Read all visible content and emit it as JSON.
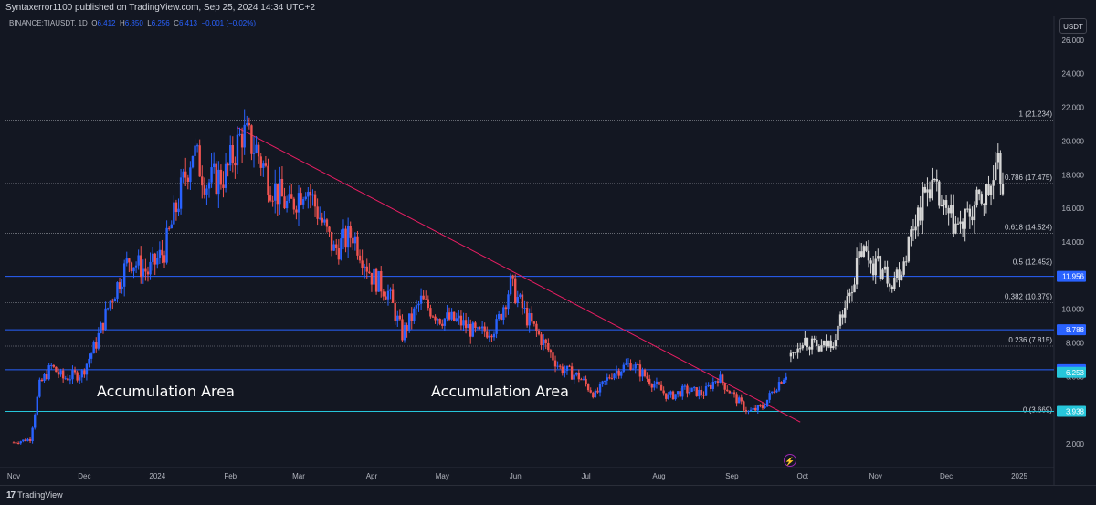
{
  "header": {
    "published": "Syntaxerror1100 published on TradingView.com, Sep 25, 2024 14:34 UTC+2",
    "symbol": "BINANCE:TIAUSDT, 1D",
    "o_label": "O",
    "o": "6.412",
    "h_label": "H",
    "h": "6.850",
    "l_label": "L",
    "l": "6.256",
    "c_label": "C",
    "c": "6.413",
    "change": "−0.001 (−0.02%)"
  },
  "currency": "USDT",
  "footer": {
    "brand": "TradingView",
    "logo_mark": "17"
  },
  "annotations": {
    "accumulation_1": "Accumulation Area",
    "accumulation_2": "Accumulation Area"
  },
  "colors": {
    "up": "#2962ff",
    "down": "#ef5350",
    "projection": "#d6d6d6",
    "trendline": "#e91e63",
    "hline": "#2962ff",
    "teal_line": "#26c6da",
    "fib": "#9598a1"
  },
  "chart_data": {
    "type": "candlestick",
    "title": "",
    "x_axis_ticks": [
      "Nov",
      "Dec",
      "2024",
      "Feb",
      "Mar",
      "Apr",
      "May",
      "Jun",
      "Jul",
      "Aug",
      "Sep",
      "Oct",
      "Nov",
      "Dec",
      "2025"
    ],
    "y_axis_ticks": [
      "2.000",
      "4.000",
      "6.000",
      "8.000",
      "10.000",
      "12.000",
      "14.000",
      "16.000",
      "18.000",
      "20.000",
      "22.000",
      "24.000",
      "26.000"
    ],
    "y_range": [
      0.6,
      27.4
    ],
    "fib_levels": [
      {
        "label": "1 (21.234)",
        "value": 21.234
      },
      {
        "label": "0.786 (17.475)",
        "value": 17.475
      },
      {
        "label": "0.618 (14.524)",
        "value": 14.524
      },
      {
        "label": "0.5 (12.452)",
        "value": 12.452
      },
      {
        "label": "0.382 (10.379)",
        "value": 10.379
      },
      {
        "label": "0.236 (7.815)",
        "value": 7.815
      },
      {
        "label": "0 (3.669)",
        "value": 3.669
      }
    ],
    "price_tags": [
      {
        "label": "11.956",
        "value": 11.956,
        "color": "#2962ff"
      },
      {
        "label": "8.788",
        "value": 8.788,
        "color": "#2962ff"
      },
      {
        "label": "6.413",
        "value": 6.413,
        "color": "#2962ff"
      },
      {
        "label": "6.253",
        "value": 6.253,
        "color": "#26c6da"
      },
      {
        "label": "3.938",
        "value": 3.938,
        "color": "#26c6da"
      }
    ],
    "horizontal_lines": [
      11.956,
      8.788,
      6.413,
      3.938
    ],
    "trendline": {
      "from": [
        "Feb 4, 2024",
        20.8
      ],
      "to": [
        "Sep 30, 2024",
        3.3
      ]
    },
    "price_path": {
      "description_points": [
        [
          "Nov 1, 2023",
          2.1
        ],
        [
          "Nov 8, 2023",
          2.3
        ],
        [
          "Nov 12, 2023",
          5.5
        ],
        [
          "Nov 17, 2023",
          6.6
        ],
        [
          "Nov 22, 2023",
          5.9
        ],
        [
          "Nov 30, 2023",
          6.2
        ],
        [
          "Dec 6, 2023",
          8.0
        ],
        [
          "Dec 12, 2023",
          10.5
        ],
        [
          "Dec 20, 2023",
          13.0
        ],
        [
          "Dec 28, 2023",
          12.2
        ],
        [
          "Jan 4, 2024",
          13.5
        ],
        [
          "Jan 10, 2024",
          16.5
        ],
        [
          "Jan 16, 2024",
          19.5
        ],
        [
          "Jan 22, 2024",
          17.5
        ],
        [
          "Jan 30, 2024",
          18.0
        ],
        [
          "Feb 6, 2024",
          20.5
        ],
        [
          "Feb 12, 2024",
          19.5
        ],
        [
          "Feb 18, 2024",
          17.5
        ],
        [
          "Feb 26, 2024",
          16.0
        ],
        [
          "Mar 4, 2024",
          17.5
        ],
        [
          "Mar 10, 2024",
          15.5
        ],
        [
          "Mar 16, 2024",
          13.5
        ],
        [
          "Mar 24, 2024",
          14.5
        ],
        [
          "Apr 1, 2024",
          12.0
        ],
        [
          "Apr 8, 2024",
          11.0
        ],
        [
          "Apr 14, 2024",
          8.5
        ],
        [
          "Apr 22, 2024",
          10.5
        ],
        [
          "Apr 30, 2024",
          9.5
        ],
        [
          "May 8, 2024",
          9.3
        ],
        [
          "May 16, 2024",
          8.5
        ],
        [
          "May 24, 2024",
          9.0
        ],
        [
          "May 30, 2024",
          11.5
        ],
        [
          "Jun 6, 2024",
          9.5
        ],
        [
          "Jun 14, 2024",
          7.8
        ],
        [
          "Jun 20, 2024",
          6.5
        ],
        [
          "Jun 28, 2024",
          6.0
        ],
        [
          "Jul 5, 2024",
          4.9
        ],
        [
          "Jul 12, 2024",
          6.2
        ],
        [
          "Jul 20, 2024",
          6.8
        ],
        [
          "Jul 28, 2024",
          5.8
        ],
        [
          "Aug 5, 2024",
          4.8
        ],
        [
          "Aug 12, 2024",
          5.2
        ],
        [
          "Aug 20, 2024",
          5.0
        ],
        [
          "Aug 26, 2024",
          6.0
        ],
        [
          "Sep 2, 2024",
          4.8
        ],
        [
          "Sep 8, 2024",
          3.9
        ],
        [
          "Sep 14, 2024",
          4.2
        ],
        [
          "Sep 20, 2024",
          5.5
        ],
        [
          "Sep 25, 2024",
          6.4
        ]
      ],
      "projection": [
        [
          "Sep 26, 2024",
          7.2
        ],
        [
          "Oct 1, 2024",
          8.3
        ],
        [
          "Oct 8, 2024",
          7.6
        ],
        [
          "Oct 14, 2024",
          8.2
        ],
        [
          "Oct 20, 2024",
          10.5
        ],
        [
          "Oct 26, 2024",
          13.5
        ],
        [
          "Nov 2, 2024",
          12.5
        ],
        [
          "Nov 8, 2024",
          11.8
        ],
        [
          "Nov 12, 2024",
          12.5
        ],
        [
          "Nov 18, 2024",
          15.5
        ],
        [
          "Nov 24, 2024",
          17.5
        ],
        [
          "Dec 1, 2024",
          15.5
        ],
        [
          "Dec 7, 2024",
          14.8
        ],
        [
          "Dec 13, 2024",
          16.0
        ],
        [
          "Dec 19, 2024",
          17.0
        ],
        [
          "Dec 23, 2024",
          18.2
        ],
        [
          "Dec 26, 2024",
          17.4
        ]
      ]
    }
  }
}
